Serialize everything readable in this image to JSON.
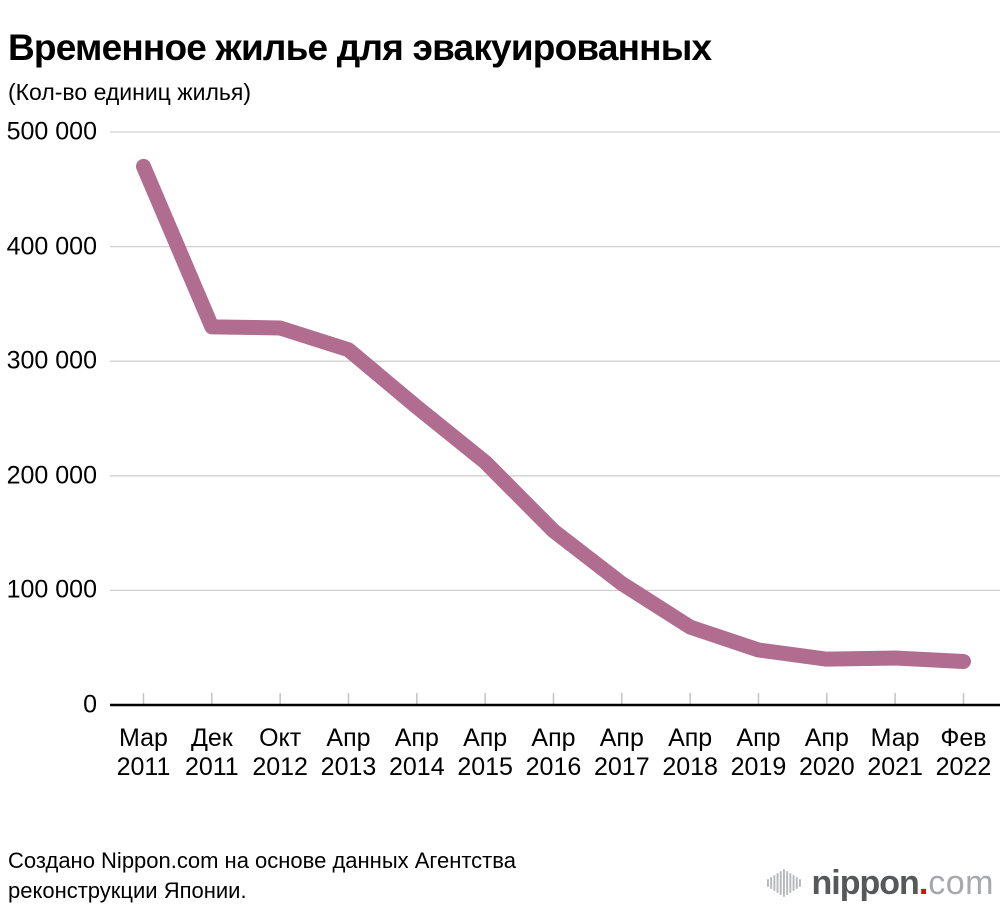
{
  "chart_data": {
    "type": "line",
    "title": "Временное жилье для эвакуированных",
    "subtitle": "(Кол-во единиц жилья)",
    "categories": [
      "Мар 2011",
      "Дек 2011",
      "Окт 2012",
      "Апр 2013",
      "Апр 2014",
      "Апр 2015",
      "Апр 2016",
      "Апр 2017",
      "Апр 2018",
      "Апр 2019",
      "Апр 2020",
      "Мар 2021",
      "Фев 2022"
    ],
    "values": [
      470000,
      330000,
      329000,
      310000,
      260000,
      212000,
      152000,
      106000,
      68000,
      48000,
      40000,
      41000,
      38000
    ],
    "xlabel": "",
    "ylabel": "",
    "ylim": [
      0,
      500000
    ],
    "y_ticks": [
      0,
      100000,
      200000,
      300000,
      400000,
      500000
    ],
    "y_tick_labels": [
      "0",
      "100 000",
      "200 000",
      "300 000",
      "400 000",
      "500 000"
    ],
    "grid": true,
    "legend": "none",
    "line_color": "#b06d8f",
    "grid_color": "#d0d0d0",
    "axis_color": "#000000"
  },
  "footer": {
    "line1": "Создано Nippon.com на основе данных Агентства",
    "line2": "реконструкции Японии."
  },
  "logo": {
    "name": "nippon",
    "dot": ".",
    "tld": "com",
    "dot_color": "#e60012",
    "icon": "soundwave-icon"
  }
}
